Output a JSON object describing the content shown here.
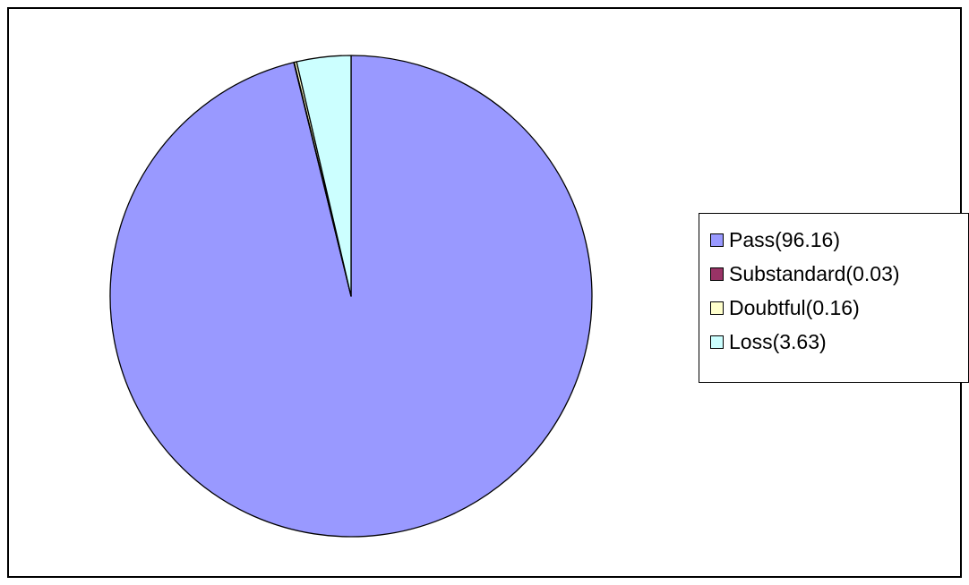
{
  "chart_data": {
    "type": "pie",
    "slices": [
      {
        "label": "Pass(96.16)",
        "value": 96.16,
        "color": "#9999ff"
      },
      {
        "label": "Substandard(0.03)",
        "value": 0.03,
        "color": "#993366"
      },
      {
        "label": "Doubtful(0.16)",
        "value": 0.16,
        "color": "#ffffcc"
      },
      {
        "label": "Loss(3.63)",
        "value": 3.63,
        "color": "#ccffff"
      }
    ],
    "legend_placement": "right",
    "title": ""
  }
}
